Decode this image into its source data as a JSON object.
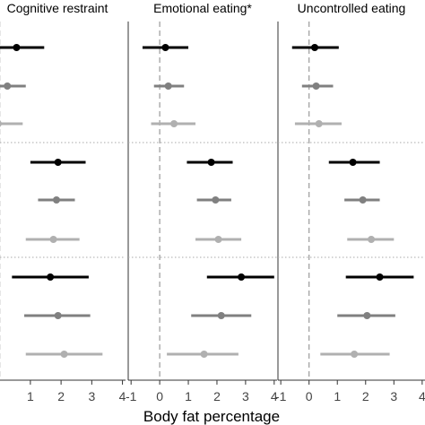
{
  "chart_data": {
    "type": "forest",
    "xlabel": "Body fat percentage",
    "xticks": [
      -1,
      0,
      1,
      2,
      3,
      4
    ],
    "xlim": [
      -1.1,
      4.1
    ],
    "reference_line_x": 0,
    "group_separators": "dotted",
    "shades": [
      "#000000",
      "#808080",
      "#b0b0b0"
    ],
    "panels": [
      {
        "title": "Cognitive restraint",
        "groups": [
          {
            "rows": [
              {
                "est": 0.55,
                "lo": -0.25,
                "hi": 1.45
              },
              {
                "est": 0.25,
                "lo": -0.25,
                "hi": 0.85
              },
              {
                "est": -0.05,
                "lo": -0.4,
                "hi": 0.75
              }
            ]
          },
          {
            "rows": [
              {
                "est": 1.9,
                "lo": 1.0,
                "hi": 2.8
              },
              {
                "est": 1.85,
                "lo": 1.25,
                "hi": 2.45
              },
              {
                "est": 1.75,
                "lo": 0.85,
                "hi": 2.6
              }
            ]
          },
          {
            "rows": [
              {
                "est": 1.65,
                "lo": 0.4,
                "hi": 2.9
              },
              {
                "est": 1.9,
                "lo": 0.8,
                "hi": 2.95
              },
              {
                "est": 2.1,
                "lo": 0.85,
                "hi": 3.35
              }
            ]
          }
        ]
      },
      {
        "title": "Emotional eating*",
        "groups": [
          {
            "rows": [
              {
                "est": 0.2,
                "lo": -0.6,
                "hi": 1.0
              },
              {
                "est": 0.3,
                "lo": -0.2,
                "hi": 0.85
              },
              {
                "est": 0.5,
                "lo": -0.3,
                "hi": 1.25
              }
            ]
          },
          {
            "rows": [
              {
                "est": 1.8,
                "lo": 0.95,
                "hi": 2.55
              },
              {
                "est": 1.95,
                "lo": 1.3,
                "hi": 2.5
              },
              {
                "est": 2.05,
                "lo": 1.25,
                "hi": 2.85
              }
            ]
          },
          {
            "rows": [
              {
                "est": 2.85,
                "lo": 1.65,
                "hi": 4.0
              },
              {
                "est": 2.15,
                "lo": 1.1,
                "hi": 3.2
              },
              {
                "est": 1.55,
                "lo": 0.25,
                "hi": 2.75
              }
            ]
          }
        ]
      },
      {
        "title": "Uncontrolled eating",
        "groups": [
          {
            "rows": [
              {
                "est": 0.2,
                "lo": -0.6,
                "hi": 1.05
              },
              {
                "est": 0.25,
                "lo": -0.25,
                "hi": 0.85
              },
              {
                "est": 0.35,
                "lo": -0.5,
                "hi": 1.15
              }
            ]
          },
          {
            "rows": [
              {
                "est": 1.55,
                "lo": 0.7,
                "hi": 2.5
              },
              {
                "est": 1.9,
                "lo": 1.25,
                "hi": 2.5
              },
              {
                "est": 2.2,
                "lo": 1.35,
                "hi": 3.0
              }
            ]
          },
          {
            "rows": [
              {
                "est": 2.5,
                "lo": 1.3,
                "hi": 3.7
              },
              {
                "est": 2.05,
                "lo": 1.0,
                "hi": 3.05
              },
              {
                "est": 1.6,
                "lo": 0.4,
                "hi": 2.85
              }
            ]
          }
        ]
      }
    ]
  }
}
